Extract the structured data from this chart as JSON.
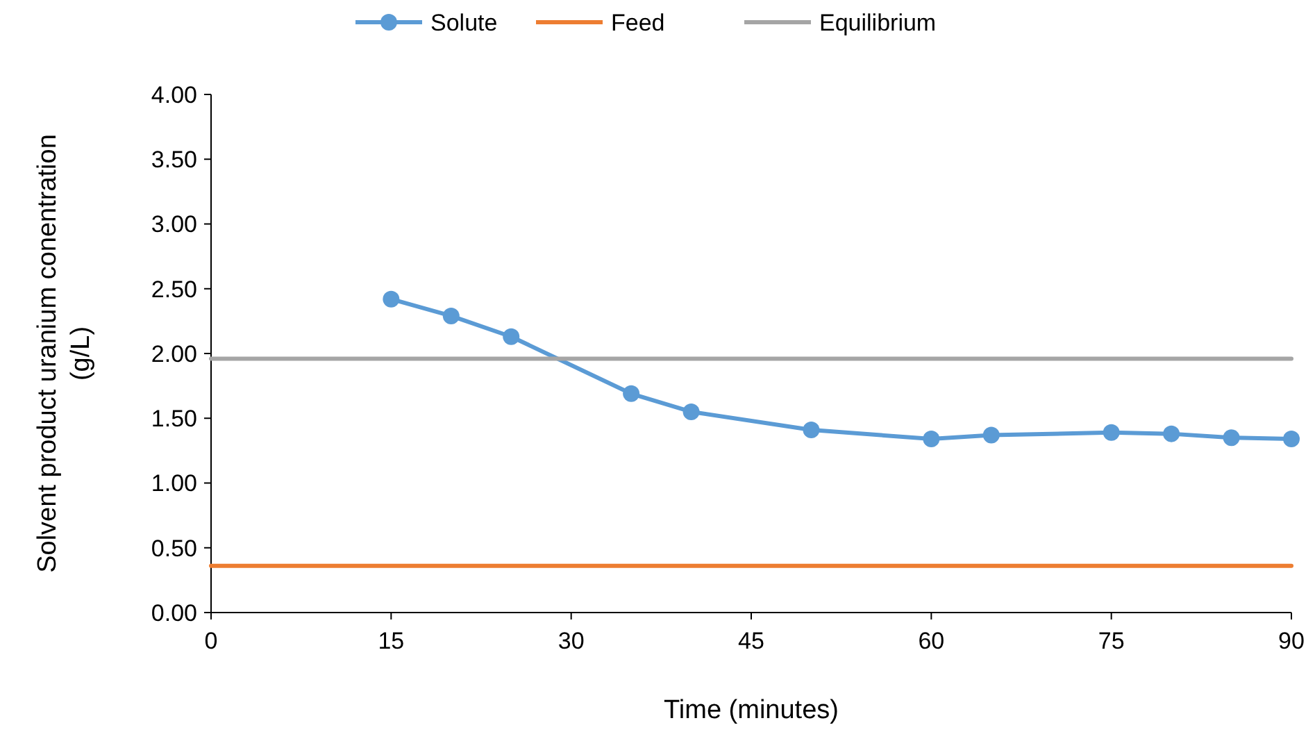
{
  "chart_data": {
    "type": "line",
    "xlabel": "Time (minutes)",
    "ylabel": "Solvent product uranium conentration (g/L)",
    "xlim": [
      0,
      90
    ],
    "xticks": [
      0,
      15,
      30,
      45,
      60,
      75,
      90
    ],
    "ylim": [
      0,
      4
    ],
    "yticks": [
      {
        "value": 0,
        "label": "0.00"
      },
      {
        "value": 0.5,
        "label": "0.50"
      },
      {
        "value": 1,
        "label": "1.00"
      },
      {
        "value": 1.5,
        "label": "1.50"
      },
      {
        "value": 2,
        "label": "2.00"
      },
      {
        "value": 2.5,
        "label": "2.50"
      },
      {
        "value": 3,
        "label": "3.00"
      },
      {
        "value": 3.5,
        "label": "3.50"
      },
      {
        "value": 4,
        "label": "4.00"
      }
    ],
    "legend": "top",
    "marker": "circle",
    "grid": false,
    "series": [
      {
        "name": "Solute",
        "color": "#5b9bd5",
        "x": [
          15,
          20,
          25,
          35,
          40,
          50,
          60,
          65,
          75,
          80,
          85,
          90
        ],
        "values": [
          2.42,
          2.29,
          2.13,
          1.69,
          1.55,
          1.41,
          1.34,
          1.37,
          1.39,
          1.38,
          1.35,
          1.34
        ]
      },
      {
        "name": "Feed",
        "color": "#ed7d31",
        "marker": "none",
        "x": [
          0,
          90
        ],
        "values": [
          0.36,
          0.36
        ]
      },
      {
        "name": "Equilibrium",
        "color": "#a5a5a5",
        "marker": "none",
        "x": [
          0,
          90
        ],
        "values": [
          1.96,
          1.96
        ]
      }
    ]
  }
}
